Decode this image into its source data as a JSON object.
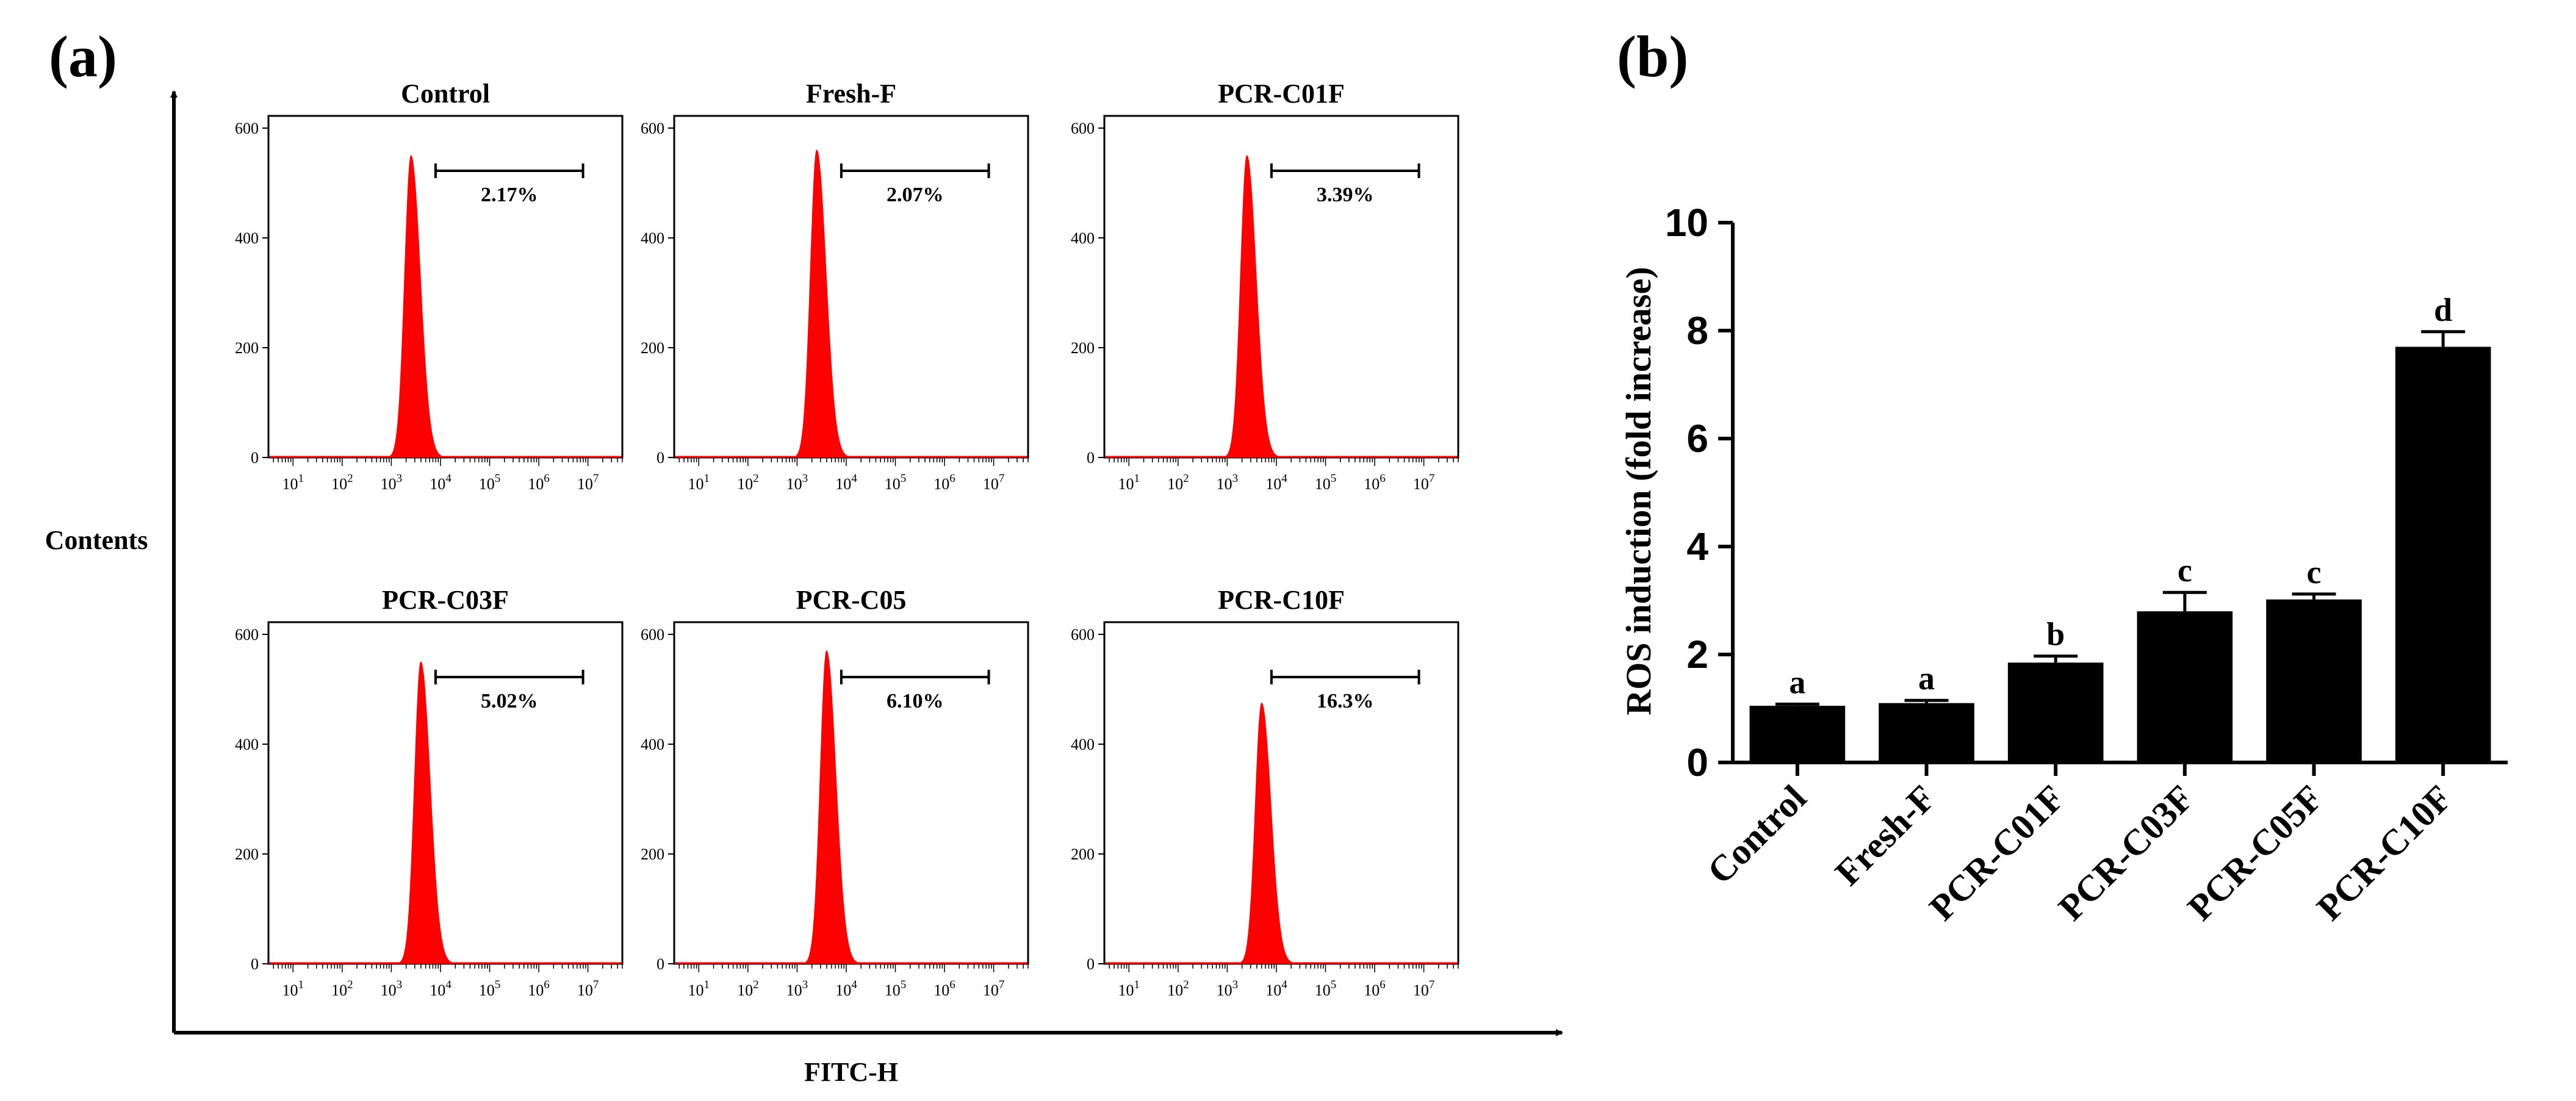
{
  "panel_a": {
    "label": "(a)",
    "y_axis_label": "Contents",
    "x_axis_label": "FITC-H",
    "y_ticks": [
      "0",
      "200",
      "400",
      "600"
    ],
    "x_tick_exponents": [
      "1",
      "2",
      "3",
      "4",
      "5",
      "6",
      "7"
    ],
    "x_tick_base": "10",
    "peak_color": "#ff0000",
    "histograms": [
      {
        "title": "Control",
        "gate_value": "2.17%",
        "peak_height": 550,
        "peak_log": 3.4
      },
      {
        "title": "Fresh-F",
        "gate_value": "2.07%",
        "peak_height": 560,
        "peak_log": 3.4
      },
      {
        "title": "PCR-C01F",
        "gate_value": "3.39%",
        "peak_height": 550,
        "peak_log": 3.4
      },
      {
        "title": "PCR-C03F",
        "gate_value": "5.02%",
        "peak_height": 550,
        "peak_log": 3.6
      },
      {
        "title": "PCR-C05",
        "gate_value": "6.10%",
        "peak_height": 570,
        "peak_log": 3.6
      },
      {
        "title": "PCR-C10F",
        "gate_value": "16.3%",
        "peak_height": 475,
        "peak_log": 3.7
      }
    ]
  },
  "panel_b": {
    "label": "(b)",
    "chart_data": {
      "type": "bar",
      "categories": [
        "Control",
        "Fresh-F",
        "PCR-C01F",
        "PCR-C03F",
        "PCR-C05F",
        "PCR-C10F"
      ],
      "values": [
        1.05,
        1.1,
        1.85,
        2.8,
        3.02,
        7.7
      ],
      "errors": [
        0.03,
        0.05,
        0.12,
        0.35,
        0.1,
        0.28
      ],
      "significance_letters": [
        "a",
        "a",
        "b",
        "c",
        "c",
        "d"
      ],
      "ylabel": "ROS induction (fold increase)",
      "xlabel": "",
      "ylim": [
        0,
        10
      ],
      "yticks": [
        "0",
        "2",
        "4",
        "6",
        "8",
        "10"
      ],
      "bar_color": "#000000"
    }
  }
}
